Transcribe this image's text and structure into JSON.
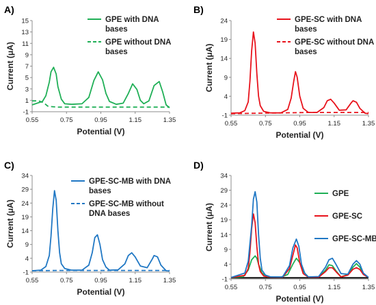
{
  "colors": {
    "green": "#1faf56",
    "red": "#e8121b",
    "blue": "#1f77c4",
    "black": "#000000",
    "axis": "#8c8c8c"
  },
  "chart_data": [
    {
      "panel": "A)",
      "type": "line",
      "xlabel": "Potential (V)",
      "ylabel": "Current (μA)",
      "xlim": [
        0.55,
        1.35
      ],
      "ylim": [
        -1,
        15
      ],
      "xticks": [
        "0.55",
        "0.75",
        "0.95",
        "1.15",
        "1.35"
      ],
      "yticks": [
        "-1",
        "1",
        "3",
        "5",
        "7",
        "9",
        "11",
        "13",
        "15"
      ],
      "legend": "top-right",
      "series": [
        {
          "name": "GPE with DNA bases",
          "color": "#1faf56",
          "dash": false,
          "x": [
            0.55,
            0.58,
            0.61,
            0.63,
            0.65,
            0.66,
            0.675,
            0.69,
            0.7,
            0.72,
            0.74,
            0.78,
            0.84,
            0.88,
            0.91,
            0.935,
            0.96,
            0.98,
            1.0,
            1.04,
            1.08,
            1.11,
            1.135,
            1.16,
            1.18,
            1.2,
            1.23,
            1.26,
            1.29,
            1.31,
            1.33,
            1.35
          ],
          "y": [
            0.2,
            0.5,
            0.8,
            1.8,
            4.2,
            6.0,
            6.8,
            5.6,
            3.4,
            1.2,
            0.4,
            0.3,
            0.4,
            1.5,
            4.5,
            6.0,
            4.6,
            2.2,
            0.8,
            0.3,
            0.5,
            2.2,
            3.9,
            2.9,
            1.0,
            0.4,
            0.9,
            3.6,
            4.3,
            2.5,
            0.2,
            -0.3
          ]
        },
        {
          "name": "GPE without DNA bases",
          "color": "#1faf56",
          "dash": true,
          "x": [
            0.55,
            0.59,
            0.62,
            0.64,
            0.66,
            0.7,
            0.8,
            0.95,
            1.1,
            1.25,
            1.35
          ],
          "y": [
            0.9,
            0.9,
            0.5,
            0.0,
            -0.1,
            -0.2,
            -0.2,
            -0.2,
            -0.2,
            -0.2,
            -0.2
          ]
        }
      ]
    },
    {
      "panel": "B)",
      "type": "line",
      "xlabel": "Potential (V)",
      "ylabel": "Current (μA)",
      "xlim": [
        0.55,
        1.35
      ],
      "ylim": [
        -1,
        24
      ],
      "xticks": [
        "0.55",
        "0.75",
        "0.95",
        "1.15",
        "1.35"
      ],
      "yticks": [
        "-1",
        "4",
        "9",
        "14",
        "19",
        "24"
      ],
      "legend": "top-right",
      "series": [
        {
          "name": "GPE-SC with DNA bases",
          "color": "#e8121b",
          "dash": false,
          "x": [
            0.55,
            0.6,
            0.63,
            0.65,
            0.66,
            0.67,
            0.68,
            0.69,
            0.7,
            0.71,
            0.72,
            0.74,
            0.78,
            0.84,
            0.88,
            0.9,
            0.915,
            0.925,
            0.935,
            0.95,
            0.97,
            1.0,
            1.05,
            1.09,
            1.11,
            1.13,
            1.15,
            1.18,
            1.22,
            1.25,
            1.26,
            1.28,
            1.3,
            1.33,
            1.35
          ],
          "y": [
            -0.5,
            -0.4,
            0.2,
            2.5,
            8.0,
            16.0,
            21.0,
            18.0,
            10.0,
            4.0,
            1.5,
            0.0,
            -0.4,
            -0.4,
            0.5,
            3.5,
            8.0,
            10.5,
            9.0,
            4.0,
            0.8,
            -0.3,
            -0.3,
            1.0,
            2.8,
            3.2,
            2.2,
            0.3,
            0.4,
            2.3,
            2.8,
            2.4,
            0.8,
            -0.5,
            -0.6
          ]
        },
        {
          "name": "GPE-SC without DNA bases",
          "color": "#e8121b",
          "dash": true,
          "x": [
            0.55,
            0.7,
            0.85,
            1.0,
            1.15,
            1.35
          ],
          "y": [
            -0.6,
            -0.5,
            -0.4,
            -0.3,
            -0.3,
            -0.3
          ]
        }
      ]
    },
    {
      "panel": "C)",
      "type": "line",
      "xlabel": "Potential (V)",
      "ylabel": "Current (μA)",
      "xlim": [
        0.55,
        1.35
      ],
      "ylim": [
        -1,
        34
      ],
      "xticks": [
        "0.55",
        "0.75",
        "0.95",
        "1.15",
        "1.35"
      ],
      "yticks": [
        "-1",
        "4",
        "9",
        "14",
        "19",
        "24",
        "29",
        "34"
      ],
      "legend": "top-right",
      "series": [
        {
          "name": "GPE-SC-MB with DNA bases",
          "color": "#1f77c4",
          "dash": false,
          "x": [
            0.55,
            0.6,
            0.63,
            0.65,
            0.66,
            0.67,
            0.68,
            0.69,
            0.7,
            0.71,
            0.72,
            0.74,
            0.78,
            0.84,
            0.88,
            0.9,
            0.915,
            0.93,
            0.945,
            0.96,
            0.98,
            1.0,
            1.05,
            1.09,
            1.11,
            1.13,
            1.15,
            1.18,
            1.22,
            1.25,
            1.26,
            1.28,
            1.3,
            1.33,
            1.35
          ],
          "y": [
            -0.5,
            -0.3,
            1.0,
            5.0,
            12.0,
            22.0,
            28.5,
            25.0,
            14.0,
            6.0,
            2.0,
            0.3,
            -0.3,
            -0.3,
            1.5,
            6.0,
            11.5,
            12.5,
            9.0,
            3.5,
            0.8,
            -0.3,
            -0.2,
            2.0,
            5.0,
            6.0,
            4.5,
            1.2,
            0.6,
            3.8,
            5.0,
            4.5,
            1.5,
            -0.5,
            -0.6
          ]
        },
        {
          "name": "GPE-SC-MB without DNA bases",
          "color": "#1f77c4",
          "dash": true,
          "x": [
            0.55,
            0.7,
            0.85,
            1.0,
            1.15,
            1.35
          ],
          "y": [
            -0.5,
            -0.4,
            -0.4,
            -0.4,
            -0.4,
            -0.4
          ]
        }
      ]
    },
    {
      "panel": "D)",
      "type": "line",
      "xlabel": "Potential (V)",
      "ylabel": "Current (μA)",
      "xlim": [
        0.55,
        1.35
      ],
      "ylim": [
        -1,
        34
      ],
      "xticks": [
        "0.55",
        "0.75",
        "0.95",
        "1.15",
        "1.35"
      ],
      "yticks": [
        "-1",
        "4",
        "9",
        "14",
        "19",
        "24",
        "29",
        "34"
      ],
      "legend": "right",
      "series": [
        {
          "name": "",
          "color": "#000000",
          "dash": false,
          "x": [
            0.55,
            1.35
          ],
          "y": [
            -0.6,
            -0.6
          ]
        },
        {
          "name": "GPE",
          "color": "#1faf56",
          "dash": false,
          "x": [
            0.55,
            0.62,
            0.65,
            0.67,
            0.69,
            0.7,
            0.71,
            0.73,
            0.76,
            0.84,
            0.88,
            0.91,
            0.93,
            0.95,
            0.97,
            1.0,
            1.06,
            1.1,
            1.12,
            1.14,
            1.16,
            1.19,
            1.23,
            1.26,
            1.28,
            1.3,
            1.32,
            1.35
          ],
          "y": [
            -0.5,
            -0.3,
            2.0,
            5.5,
            6.8,
            6.0,
            4.0,
            1.0,
            -0.3,
            -0.4,
            0.5,
            4.0,
            6.0,
            4.5,
            1.5,
            -0.3,
            -0.3,
            2.0,
            3.8,
            3.5,
            1.8,
            -0.3,
            0.5,
            3.0,
            4.2,
            3.0,
            0.6,
            -0.5
          ]
        },
        {
          "name": "GPE-SC",
          "color": "#e8121b",
          "dash": false,
          "x": [
            0.55,
            0.63,
            0.65,
            0.66,
            0.67,
            0.68,
            0.69,
            0.7,
            0.71,
            0.72,
            0.74,
            0.78,
            0.85,
            0.89,
            0.91,
            0.925,
            0.935,
            0.95,
            0.97,
            1.0,
            1.06,
            1.1,
            1.12,
            1.14,
            1.16,
            1.19,
            1.23,
            1.26,
            1.28,
            1.3,
            1.32,
            1.35
          ],
          "y": [
            -0.5,
            0.2,
            2.5,
            8.0,
            16.0,
            21.0,
            18.0,
            10.0,
            4.0,
            1.5,
            0.0,
            -0.4,
            -0.4,
            2.5,
            7.0,
            10.5,
            9.5,
            4.5,
            0.8,
            -0.4,
            -0.4,
            1.5,
            2.8,
            2.8,
            1.5,
            -0.3,
            0.3,
            2.3,
            2.8,
            2.2,
            0.5,
            -0.5
          ]
        },
        {
          "name": "GPE-SC-MB",
          "color": "#1f77c4",
          "dash": false,
          "x": [
            0.55,
            0.63,
            0.65,
            0.67,
            0.68,
            0.69,
            0.7,
            0.71,
            0.72,
            0.73,
            0.75,
            0.78,
            0.85,
            0.89,
            0.91,
            0.93,
            0.945,
            0.96,
            0.98,
            1.0,
            1.06,
            1.1,
            1.12,
            1.14,
            1.16,
            1.19,
            1.23,
            1.26,
            1.28,
            1.3,
            1.32,
            1.35
          ],
          "y": [
            -0.5,
            1.0,
            5.0,
            17.0,
            26.0,
            28.5,
            25.0,
            14.0,
            6.0,
            2.0,
            0.3,
            -0.3,
            -0.3,
            3.5,
            9.5,
            12.5,
            10.0,
            4.0,
            0.8,
            -0.3,
            -0.2,
            3.0,
            5.5,
            6.0,
            4.0,
            0.8,
            0.6,
            4.0,
            5.2,
            4.0,
            1.0,
            -0.5
          ]
        }
      ]
    }
  ]
}
